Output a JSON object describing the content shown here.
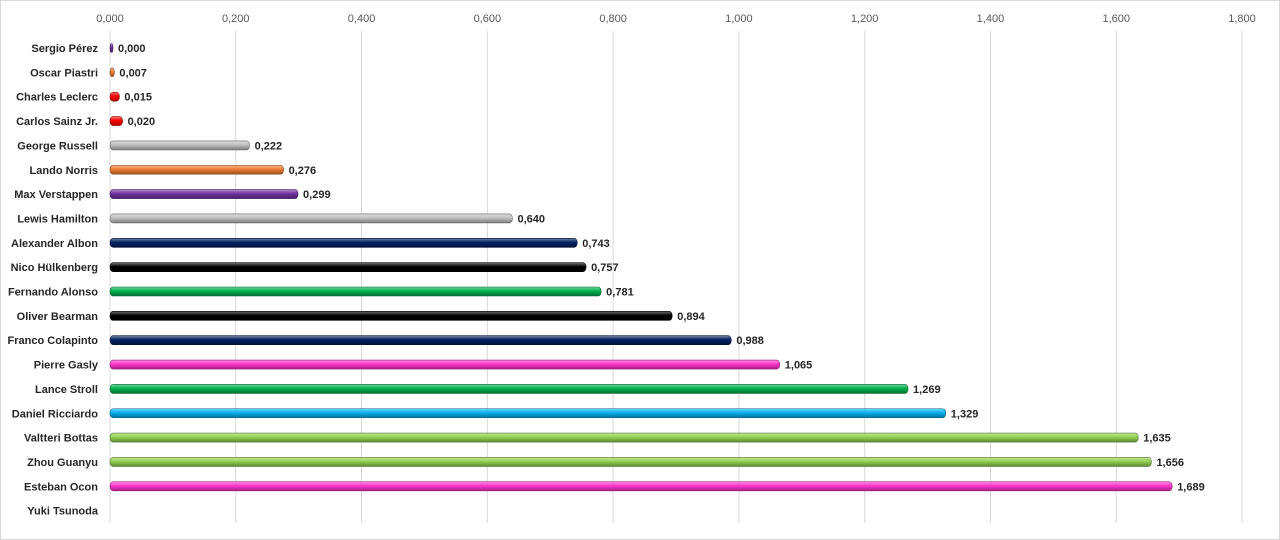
{
  "chart_data": {
    "type": "bar",
    "orientation": "horizontal",
    "title": "",
    "xlabel": "",
    "ylabel": "",
    "xlim": [
      0,
      1.8
    ],
    "x_ticks": [
      "0,000",
      "0,200",
      "0,400",
      "0,600",
      "0,800",
      "1,000",
      "1,200",
      "1,400",
      "1,600",
      "1,800"
    ],
    "x_tick_values": [
      0,
      0.2,
      0.4,
      0.6,
      0.8,
      1.0,
      1.2,
      1.4,
      1.6,
      1.8
    ],
    "x_axis_position": "top",
    "grid": true,
    "legend": "none",
    "categories": [
      "Sergio Pérez",
      "Oscar Piastri",
      "Charles Leclerc",
      "Carlos Sainz Jr.",
      "George Russell",
      "Lando Norris",
      "Max Verstappen",
      "Lewis Hamilton",
      "Alexander Albon",
      "Nico Hülkenberg",
      "Fernando Alonso",
      "Oliver Bearman",
      "Franco Colapinto",
      "Pierre Gasly",
      "Lance Stroll",
      "Daniel Ricciardo",
      "Valtteri Bottas",
      "Zhou Guanyu",
      "Esteban Ocon",
      "Yuki Tsunoda"
    ],
    "values": [
      0.0,
      0.007,
      0.015,
      0.02,
      0.222,
      0.276,
      0.299,
      0.64,
      0.743,
      0.757,
      0.781,
      0.894,
      0.988,
      1.065,
      1.269,
      1.329,
      1.635,
      1.656,
      1.689,
      null
    ],
    "value_labels": [
      "0,000",
      "0,007",
      "0,015",
      "0,020",
      "0,222",
      "0,276",
      "0,299",
      "0,640",
      "0,743",
      "0,757",
      "0,781",
      "0,894",
      "0,988",
      "1,065",
      "1,269",
      "1,329",
      "1,635",
      "1,656",
      "1,689",
      ""
    ],
    "colors": [
      "#7030a0",
      "#ed7d31",
      "#ff0000",
      "#ff0000",
      "#bfbfbf",
      "#ed7d31",
      "#7030a0",
      "#bfbfbf",
      "#002060",
      "#000000",
      "#00b050",
      "#000000",
      "#002060",
      "#ff33cc",
      "#00b050",
      "#00b0f0",
      "#92d050",
      "#92d050",
      "#ff33cc",
      "#ffffff"
    ]
  }
}
